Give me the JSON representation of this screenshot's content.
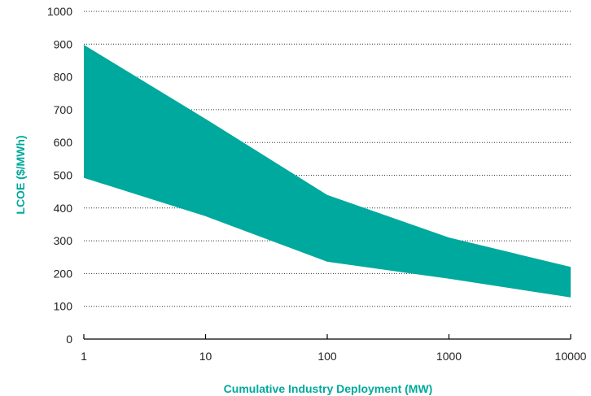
{
  "chart_data": {
    "type": "area",
    "x_scale": "log",
    "xlabel": "Cumulative Industry Deployment (MW)",
    "ylabel": "LCOE ($/MWh)",
    "title": "",
    "xlim": [
      1,
      10000
    ],
    "ylim": [
      0,
      1000
    ],
    "x_ticks": [
      1,
      10,
      100,
      1000,
      10000
    ],
    "x_tick_labels": [
      "1",
      "10",
      "100",
      "1000",
      "10000"
    ],
    "y_ticks": [
      0,
      100,
      200,
      300,
      400,
      500,
      600,
      700,
      800,
      900,
      1000
    ],
    "y_tick_labels": [
      "0",
      "100",
      "200",
      "300",
      "400",
      "500",
      "600",
      "700",
      "800",
      "900",
      "1000"
    ],
    "grid": "horizontal-dotted",
    "legend": "none",
    "band": {
      "upper": {
        "x": [
          1,
          10,
          100,
          1000,
          10000
        ],
        "y": [
          898,
          672,
          440,
          310,
          220
        ]
      },
      "lower": {
        "x": [
          1,
          10,
          100,
          1000,
          10000
        ],
        "y": [
          492,
          375,
          236,
          184,
          127
        ]
      }
    },
    "colors": {
      "band": "#00a99d",
      "axis_title": "#00a99d",
      "grid": "#333333",
      "axis": "#000000"
    }
  }
}
